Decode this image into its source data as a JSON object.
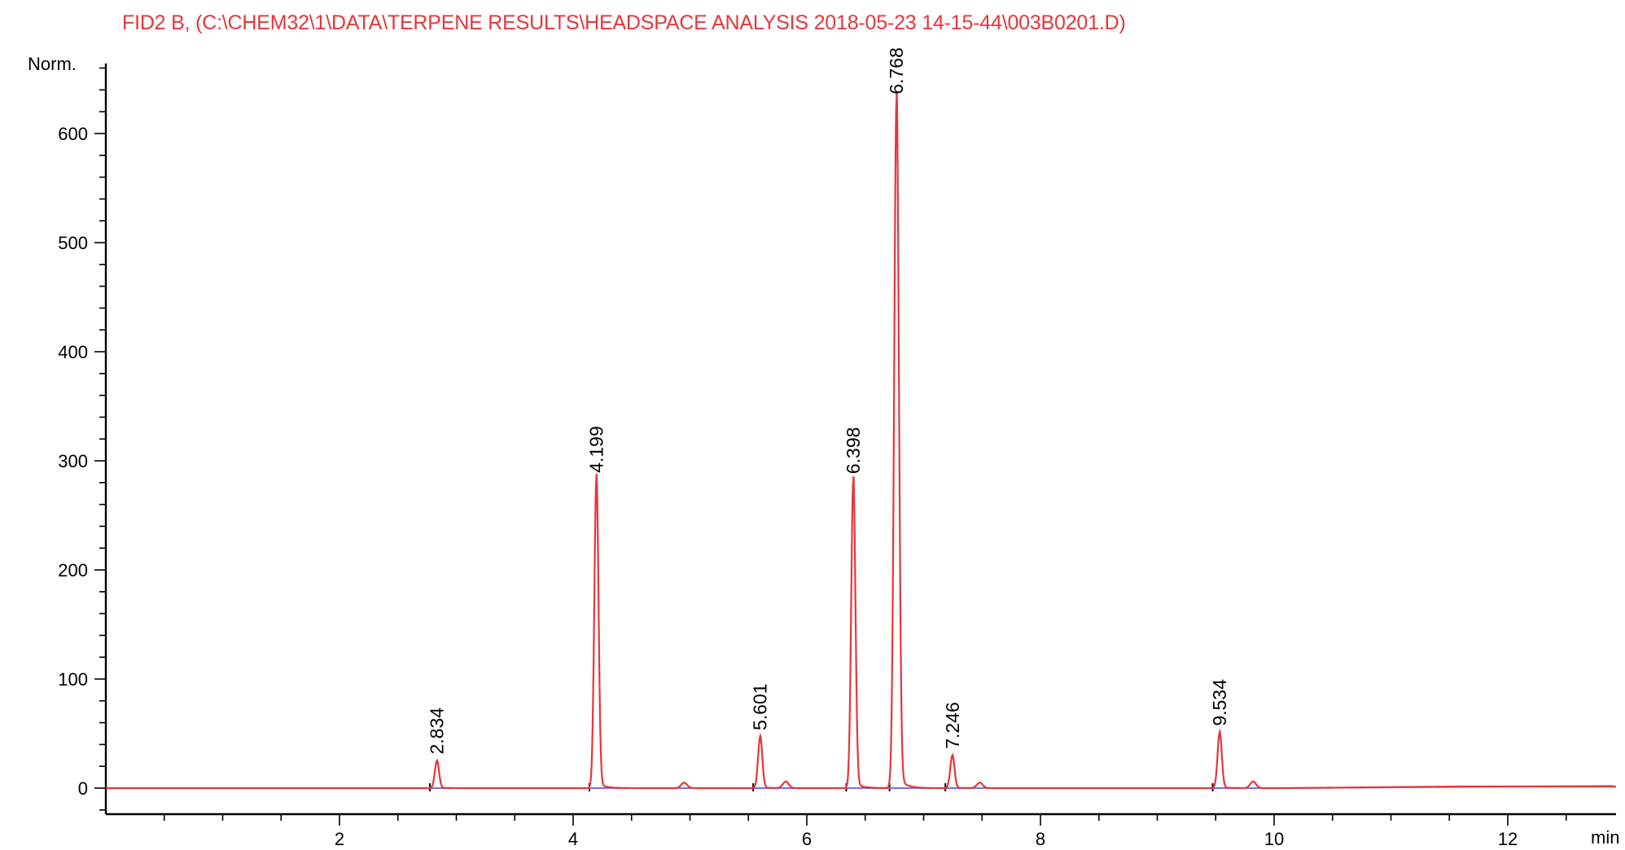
{
  "chart_data": {
    "type": "line",
    "title": "FID2 B,  (C:\\CHEM32\\1\\DATA\\TERPENE RESULTS\\HEADSPACE ANALYSIS 2018-05-23 14-15-44\\003B0201.D)",
    "ylabel": "Norm.",
    "xlabel": "min",
    "xlim": [
      0,
      13
    ],
    "ylim": [
      -30,
      670
    ],
    "x_ticks": [
      2,
      4,
      6,
      8,
      10,
      12
    ],
    "y_ticks": [
      0,
      100,
      200,
      300,
      400,
      500,
      600
    ],
    "grid": false,
    "colors": {
      "signal": "#e8353a",
      "baseline": "#7b6fd8",
      "title": "#e8353a"
    },
    "peaks": [
      {
        "rt": 2.834,
        "label": "2.834",
        "height": 25
      },
      {
        "rt": 4.199,
        "label": "4.199",
        "height": 283
      },
      {
        "rt": 5.601,
        "label": "5.601",
        "height": 47
      },
      {
        "rt": 6.398,
        "label": "6.398",
        "height": 282
      },
      {
        "rt": 6.768,
        "label": "6.768",
        "height": 630
      },
      {
        "rt": 7.246,
        "label": "7.246",
        "height": 30
      },
      {
        "rt": 9.534,
        "label": "9.534",
        "height": 51
      }
    ],
    "minor_peaks": [
      {
        "rt": 4.95,
        "height": 5
      },
      {
        "rt": 5.82,
        "height": 6
      },
      {
        "rt": 7.48,
        "height": 5
      },
      {
        "rt": 9.82,
        "height": 6
      }
    ]
  }
}
